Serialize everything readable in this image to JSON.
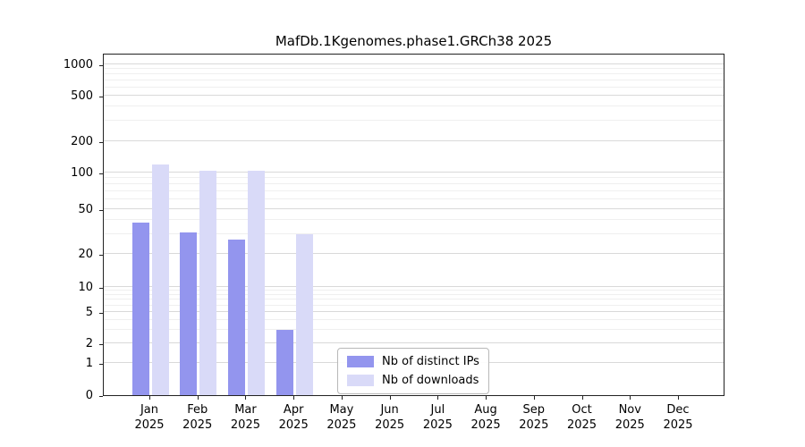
{
  "title": "MafDb.1Kgenomes.phase1.GRCh38 2025",
  "colors": {
    "grid_major": "#d9d9d9",
    "grid_minor": "#efefef",
    "axis": "#222222",
    "background": "#ffffff"
  },
  "chart_data": {
    "type": "bar",
    "title": "MafDb.1Kgenomes.phase1.GRCh38 2025",
    "scale": "symlog",
    "grid": true,
    "xlabel": "",
    "ylabel": "",
    "year": "2025",
    "categories": [
      "Jan",
      "Feb",
      "Mar",
      "Apr",
      "May",
      "Jun",
      "Jul",
      "Aug",
      "Sep",
      "Oct",
      "Nov",
      "Dec"
    ],
    "series": [
      {
        "name": "Nb of distinct IPs",
        "color": "#9395ee",
        "values": [
          38,
          31,
          27,
          3,
          0,
          0,
          0,
          0,
          0,
          0,
          0,
          0
        ]
      },
      {
        "name": "Nb of downloads",
        "color": "#d9daf8",
        "values": [
          120,
          105,
          105,
          30,
          0,
          0,
          0,
          0,
          0,
          0,
          0,
          0
        ]
      }
    ],
    "yticks": [
      0,
      1,
      2,
      5,
      10,
      20,
      50,
      100,
      200,
      500,
      1000
    ],
    "minor_gridlines": [
      3,
      4,
      6,
      7,
      8,
      9,
      30,
      40,
      60,
      70,
      80,
      90,
      300,
      400,
      600,
      700,
      800,
      900
    ],
    "ylim": [
      0,
      1100
    ],
    "legend_position": "lower-center-inside"
  }
}
